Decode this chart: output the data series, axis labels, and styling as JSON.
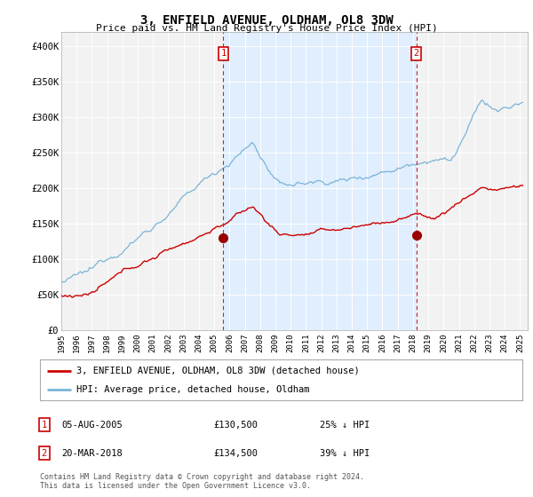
{
  "title": "3, ENFIELD AVENUE, OLDHAM, OL8 3DW",
  "subtitle": "Price paid vs. HM Land Registry's House Price Index (HPI)",
  "footer1": "Contains HM Land Registry data © Crown copyright and database right 2024.",
  "footer2": "This data is licensed under the Open Government Licence v3.0.",
  "legend_line1": "3, ENFIELD AVENUE, OLDHAM, OL8 3DW (detached house)",
  "legend_line2": "HPI: Average price, detached house, Oldham",
  "table_entries": [
    {
      "num": "1",
      "date": "05-AUG-2005",
      "price": "£130,500",
      "pct": "25% ↓ HPI"
    },
    {
      "num": "2",
      "date": "20-MAR-2018",
      "price": "£134,500",
      "pct": "39% ↓ HPI"
    }
  ],
  "marker1_year": 2005.6,
  "marker2_year": 2018.21,
  "marker1_price": 130500,
  "marker2_price": 134500,
  "hpi_color": "#7ab4d8",
  "property_color": "#cc0000",
  "shade_color": "#ddeeff",
  "bg_color": "#f0f0f0",
  "plot_bg": "#f5f5f5",
  "ylim": [
    0,
    420000
  ],
  "xlim_start": 1995.0,
  "xlim_end": 2025.5,
  "yticks": [
    0,
    50000,
    100000,
    150000,
    200000,
    250000,
    300000,
    350000,
    400000
  ],
  "ytick_labels": [
    "£0",
    "£50K",
    "£100K",
    "£150K",
    "£200K",
    "£250K",
    "£300K",
    "£350K",
    "£400K"
  ],
  "xtick_years": [
    1995,
    1996,
    1997,
    1998,
    1999,
    2000,
    2001,
    2002,
    2003,
    2004,
    2005,
    2006,
    2007,
    2008,
    2009,
    2010,
    2011,
    2012,
    2013,
    2014,
    2015,
    2016,
    2017,
    2018,
    2019,
    2020,
    2021,
    2022,
    2023,
    2024,
    2025
  ]
}
